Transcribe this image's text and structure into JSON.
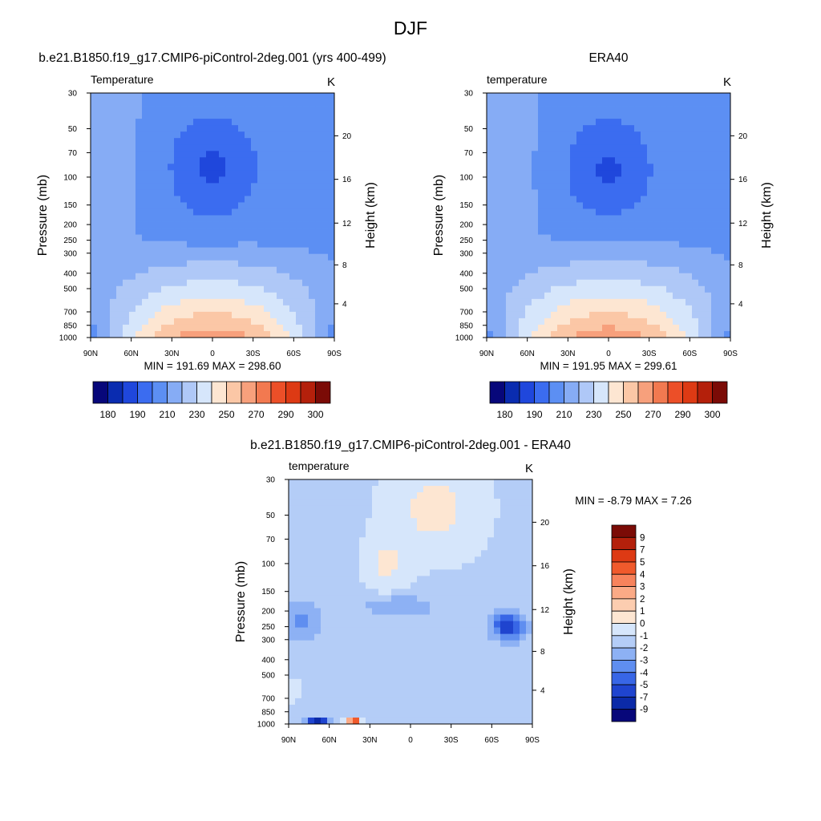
{
  "figure": {
    "title": "DJF"
  },
  "chart_data": [
    {
      "type": "heatmap",
      "panel_title": "b.e21.B1850.f19_g17.CMIP6-piControl-2deg.001 (yrs 400-499)",
      "variable_label": "Temperature",
      "units": "K",
      "ylabel": "Pressure (mb)",
      "ylabel_right": "Height (km)",
      "x_ticks": [
        "90N",
        "60N",
        "30N",
        "0",
        "30S",
        "60S",
        "90S"
      ],
      "y_ticks": [
        "30",
        "50",
        "70",
        "100",
        "150",
        "200",
        "250",
        "300",
        "400",
        "500",
        "700",
        "850",
        "1000"
      ],
      "y_ticks_right": [
        "20",
        "16",
        "12",
        "8",
        "4"
      ],
      "stats_text": "MIN = 191.69  MAX = 298.60",
      "min": 191.69,
      "max": 298.6,
      "colorbar_labels": [
        "180",
        "190",
        "210",
        "230",
        "250",
        "270",
        "290",
        "300"
      ],
      "colorbar_colors": [
        "#07077a",
        "#0a2cb0",
        "#1f47dc",
        "#3b6cf0",
        "#5c8ff3",
        "#86acf5",
        "#afc8f7",
        "#d6e6fb",
        "#fde6d2",
        "#fbc7a6",
        "#f7a07c",
        "#f27950",
        "#ec4f28",
        "#dd3a14",
        "#b4200b",
        "#7b0b06"
      ]
    },
    {
      "type": "heatmap",
      "panel_title": "ERA40",
      "variable_label": "temperature",
      "units": "K",
      "ylabel": "Pressure (mb)",
      "ylabel_right": "Height (km)",
      "x_ticks": [
        "90N",
        "60N",
        "30N",
        "0",
        "30S",
        "60S",
        "90S"
      ],
      "y_ticks": [
        "30",
        "50",
        "70",
        "100",
        "150",
        "200",
        "250",
        "300",
        "400",
        "500",
        "700",
        "850",
        "1000"
      ],
      "y_ticks_right": [
        "20",
        "16",
        "12",
        "8",
        "4"
      ],
      "stats_text": "MIN = 191.95  MAX = 299.61",
      "min": 191.95,
      "max": 299.61,
      "colorbar_labels": [
        "180",
        "190",
        "210",
        "230",
        "250",
        "270",
        "290",
        "300"
      ],
      "colorbar_colors": [
        "#07077a",
        "#0a2cb0",
        "#1f47dc",
        "#3b6cf0",
        "#5c8ff3",
        "#86acf5",
        "#afc8f7",
        "#d6e6fb",
        "#fde6d2",
        "#fbc7a6",
        "#f7a07c",
        "#f27950",
        "#ec4f28",
        "#dd3a14",
        "#b4200b",
        "#7b0b06"
      ]
    },
    {
      "type": "heatmap",
      "panel_title": "b.e21.B1850.f19_g17.CMIP6-piControl-2deg.001 - ERA40",
      "variable_label": "temperature",
      "units": "K",
      "ylabel": "Pressure (mb)",
      "ylabel_right": "Height (km)",
      "x_ticks": [
        "90N",
        "60N",
        "30N",
        "0",
        "30S",
        "60S",
        "90S"
      ],
      "y_ticks": [
        "30",
        "50",
        "70",
        "100",
        "150",
        "200",
        "250",
        "300",
        "400",
        "500",
        "700",
        "850",
        "1000"
      ],
      "y_ticks_right": [
        "20",
        "16",
        "12",
        "8",
        "4"
      ],
      "stats_text": "MIN =  -8.79  MAX =   7.26",
      "min": -8.79,
      "max": 7.26,
      "colorbar_labels": [
        "9",
        "7",
        "5",
        "4",
        "3",
        "2",
        "1",
        "0",
        "-1",
        "-2",
        "-3",
        "-4",
        "-5",
        "-7",
        "-9"
      ],
      "colorbar_colors": [
        "#7b0b06",
        "#b4200b",
        "#dd3a14",
        "#f05a2c",
        "#f7835c",
        "#fbaa86",
        "#fccdb0",
        "#fde6d2",
        "#d6e6fb",
        "#b4cdf7",
        "#8db1f4",
        "#5f8ef0",
        "#3866e6",
        "#1f44cf",
        "#0b2aa8",
        "#07077a"
      ]
    }
  ]
}
